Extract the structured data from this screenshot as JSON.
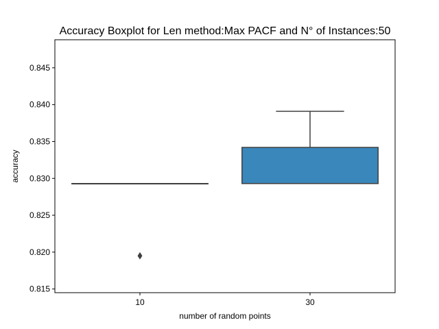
{
  "chart_data": {
    "type": "boxplot",
    "title": "Accuracy Boxplot for Len method:Max PACF and N° of Instances:50",
    "xlabel": "number of random points",
    "ylabel": "accuracy",
    "categories": [
      "10",
      "30"
    ],
    "ylim": [
      0.8145,
      0.8488
    ],
    "yticks": [
      0.815,
      0.82,
      0.825,
      0.83,
      0.835,
      0.84,
      0.845
    ],
    "ytick_labels": [
      "0.815",
      "0.820",
      "0.825",
      "0.830",
      "0.835",
      "0.840",
      "0.845"
    ],
    "grid": false,
    "boxes": [
      {
        "category": "10",
        "whisker_low": 0.8293,
        "q1": 0.8293,
        "median": 0.8293,
        "q3": 0.8293,
        "whisker_high": 0.8293,
        "outliers": [
          0.8195
        ],
        "color": "#3a87bb"
      },
      {
        "category": "30",
        "whisker_low": 0.8293,
        "q1": 0.8293,
        "median": 0.8293,
        "q3": 0.8342,
        "whisker_high": 0.8391,
        "outliers": [],
        "color": "#3a87bb"
      }
    ],
    "line_color": "#3f3f3f"
  }
}
